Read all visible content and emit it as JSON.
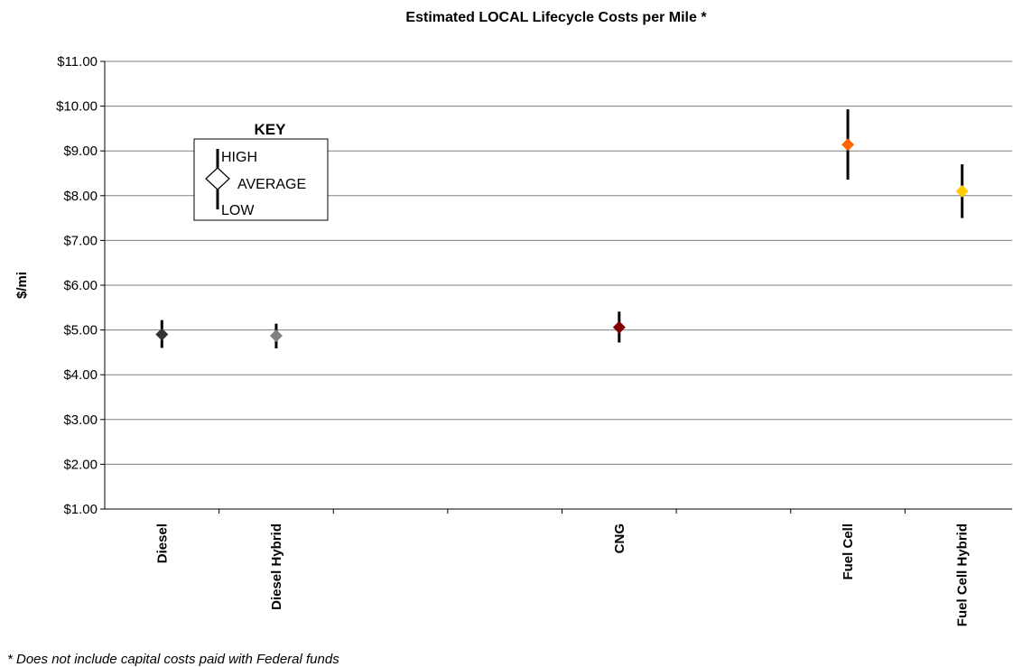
{
  "chart_data": {
    "type": "scatter",
    "title": "Estimated LOCAL Lifecycle Costs per Mile *",
    "ylabel": "$/mi",
    "xlabel": "",
    "ylim": [
      1.0,
      11.0
    ],
    "yticks": [
      "$1.00",
      "$2.00",
      "$3.00",
      "$4.00",
      "$5.00",
      "$6.00",
      "$7.00",
      "$8.00",
      "$9.00",
      "$10.00",
      "$11.00"
    ],
    "categories": [
      "Diesel",
      "Diesel Hybrid",
      "",
      "",
      "CNG",
      "",
      "Fuel Cell",
      "Fuel Cell Hybrid"
    ],
    "points": [
      {
        "category": "Diesel",
        "average": 4.9,
        "high": 5.22,
        "low": 4.6,
        "color": "#333333"
      },
      {
        "category": "Diesel Hybrid",
        "average": 4.87,
        "high": 5.14,
        "low": 4.59,
        "color": "#808080"
      },
      {
        "category": "CNG",
        "average": 5.06,
        "high": 5.41,
        "low": 4.72,
        "color": "#800000"
      },
      {
        "category": "Fuel Cell",
        "average": 9.14,
        "high": 9.93,
        "low": 8.36,
        "color": "#ff6600"
      },
      {
        "category": "Fuel Cell Hybrid",
        "average": 8.1,
        "high": 8.7,
        "low": 7.5,
        "color": "#ffcc00"
      }
    ],
    "grid": true,
    "legend": {
      "title": "KEY",
      "high_label": "HIGH",
      "average_label": "AVERAGE",
      "low_label": "LOW",
      "placement": "top-left"
    }
  },
  "footnote": "* Does not include capital costs paid with Federal funds"
}
